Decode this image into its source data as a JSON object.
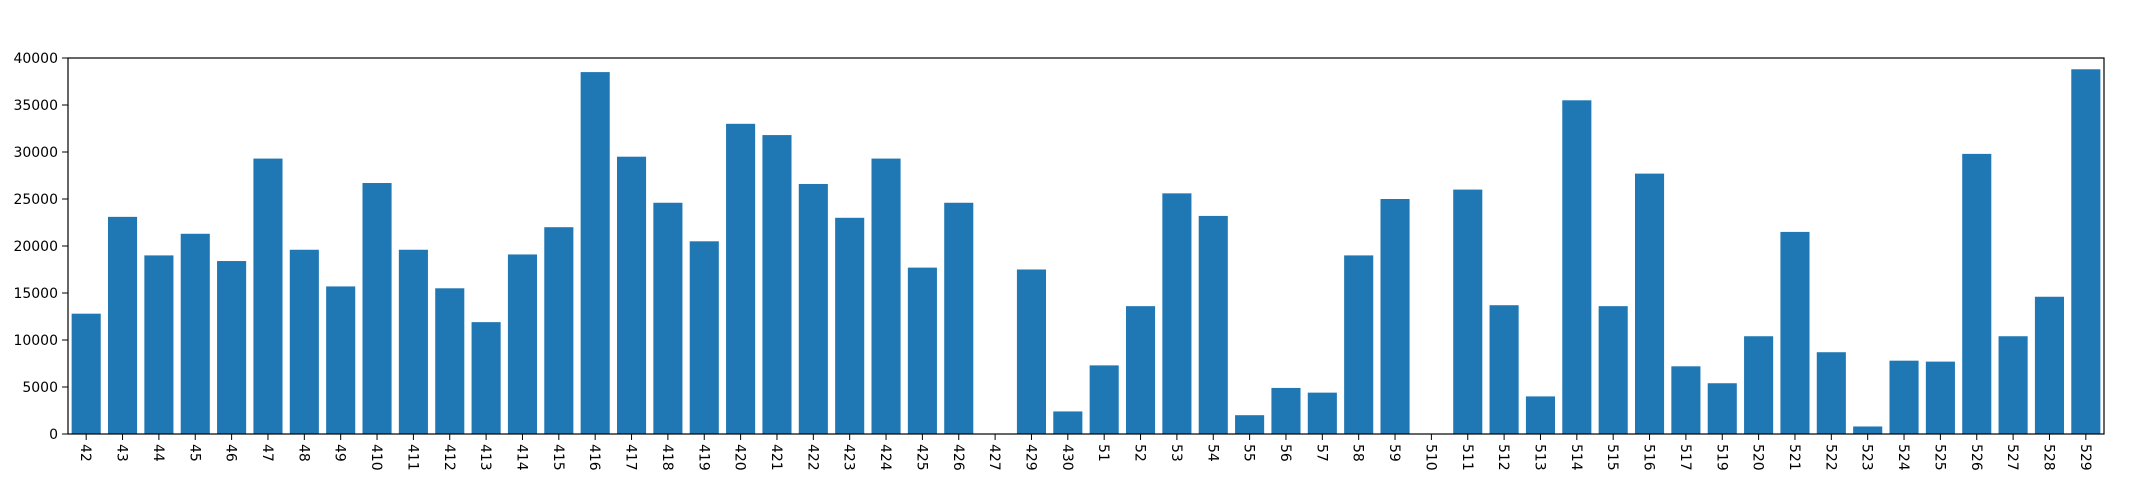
{
  "chart_data": {
    "type": "bar",
    "title": "",
    "xlabel": "",
    "ylabel": "",
    "ylim": [
      0,
      40000
    ],
    "yticks": [
      0,
      5000,
      10000,
      15000,
      20000,
      25000,
      30000,
      35000,
      40000
    ],
    "categories": [
      "42",
      "43",
      "44",
      "45",
      "46",
      "47",
      "48",
      "49",
      "410",
      "411",
      "412",
      "413",
      "414",
      "415",
      "416",
      "417",
      "418",
      "419",
      "420",
      "421",
      "422",
      "423",
      "424",
      "425",
      "426",
      "427",
      "429",
      "430",
      "51",
      "52",
      "53",
      "54",
      "55",
      "56",
      "57",
      "58",
      "59",
      "510",
      "511",
      "512",
      "513",
      "514",
      "515",
      "516",
      "517",
      "519",
      "520",
      "521",
      "522",
      "523",
      "524",
      "525",
      "526",
      "527",
      "528",
      "529"
    ],
    "values": [
      12800,
      23100,
      19000,
      21300,
      18400,
      29300,
      19600,
      15700,
      26700,
      19600,
      15500,
      11900,
      19100,
      22000,
      38500,
      29500,
      24600,
      20500,
      33000,
      31800,
      26600,
      23000,
      29300,
      17700,
      24600,
      0,
      17500,
      2400,
      7300,
      13600,
      25600,
      23200,
      2000,
      4900,
      4400,
      19000,
      25000,
      0,
      26000,
      13700,
      4000,
      35500,
      13600,
      27700,
      7200,
      5400,
      10400,
      21500,
      8700,
      800,
      7800,
      7700,
      29800,
      10400,
      14600,
      38800
    ],
    "bar_color": "#1f77b4",
    "grid": false,
    "legend": "none"
  }
}
